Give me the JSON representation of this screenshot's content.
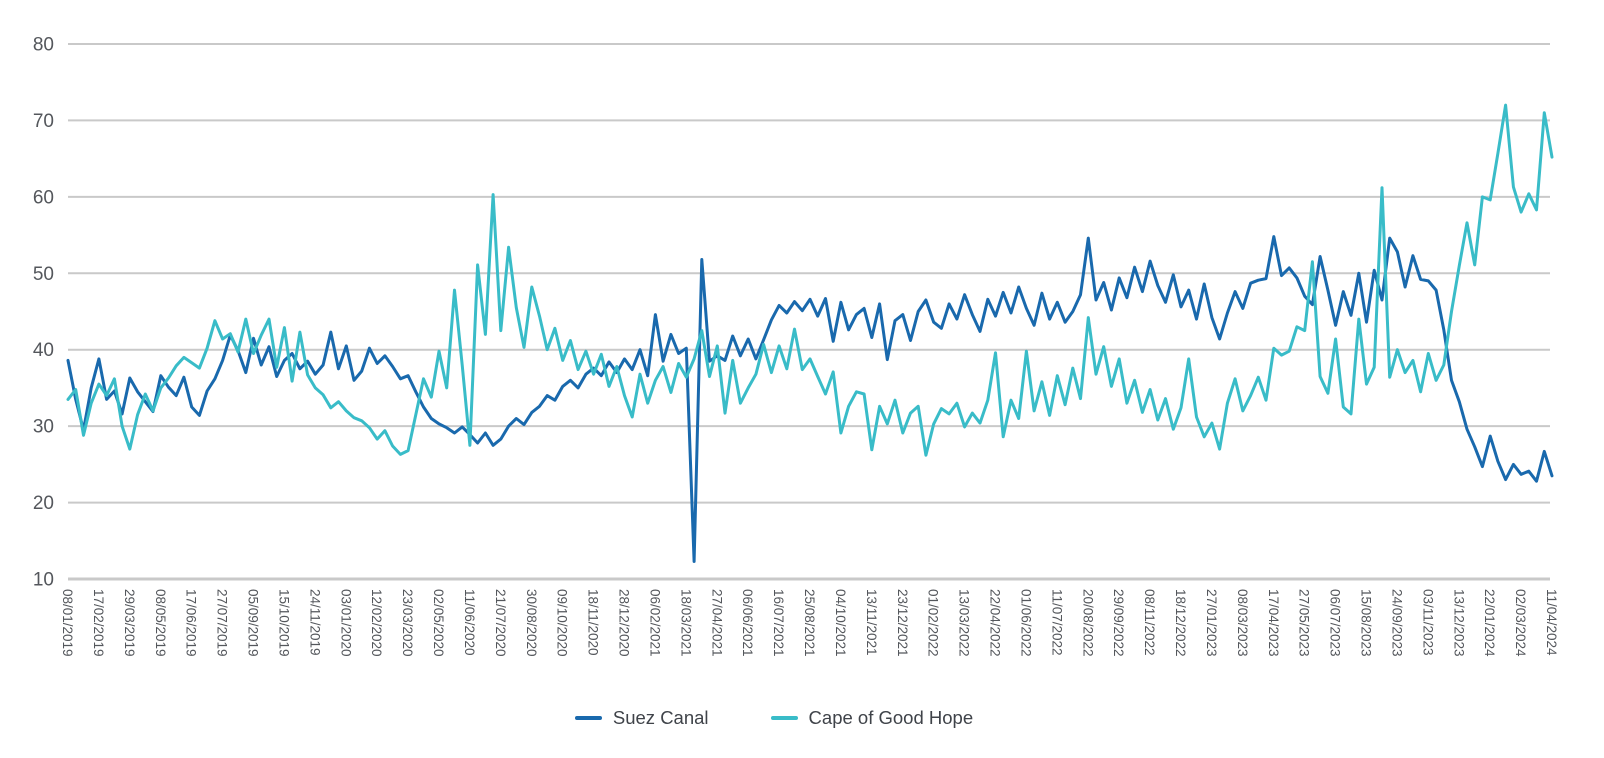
{
  "chart_data": {
    "type": "line",
    "title": "",
    "xlabel": "",
    "ylabel": "",
    "ylim": [
      10,
      80
    ],
    "y_ticks": [
      10,
      20,
      30,
      40,
      50,
      60,
      70,
      80
    ],
    "grid": "horizontal",
    "grid_color": "#c9c9c9",
    "axis_text_color": "#54575c",
    "legend_position": "bottom-center",
    "points_per_tick_interval": 4,
    "x_tick_labels": [
      "08/01/2019",
      "17/02/2019",
      "29/03/2019",
      "08/05/2019",
      "17/06/2019",
      "27/07/2019",
      "05/09/2019",
      "15/10/2019",
      "24/11/2019",
      "03/01/2020",
      "12/02/2020",
      "23/03/2020",
      "02/05/2020",
      "11/06/2020",
      "21/07/2020",
      "30/08/2020",
      "09/10/2020",
      "18/11/2020",
      "28/12/2020",
      "06/02/2021",
      "18/03/2021",
      "27/04/2021",
      "06/06/2021",
      "16/07/2021",
      "25/08/2021",
      "04/10/2021",
      "13/11/2021",
      "23/12/2021",
      "01/02/2022",
      "13/03/2022",
      "22/04/2022",
      "01/06/2022",
      "11/07/2022",
      "20/08/2022",
      "29/09/2022",
      "08/11/2022",
      "18/12/2022",
      "27/01/2023",
      "08/03/2023",
      "17/04/2023",
      "27/05/2023",
      "06/07/2023",
      "15/08/2023",
      "24/09/2023",
      "03/11/2023",
      "13/12/2023",
      "22/01/2024",
      "02/03/2024",
      "11/04/2024"
    ],
    "series": [
      {
        "name": "Suez Canal",
        "color": "#1969ad",
        "values": [
          38.6,
          33.5,
          29.5,
          35.0,
          38.8,
          33.5,
          34.6,
          31.6,
          36.3,
          34.5,
          33.2,
          31.9,
          36.6,
          35.1,
          34.0,
          36.4,
          32.5,
          31.4,
          34.6,
          36.2,
          38.6,
          41.9,
          39.9,
          37.0,
          41.5,
          38.0,
          40.4,
          36.5,
          38.6,
          39.5,
          37.5,
          38.5,
          36.8,
          38.0,
          42.3,
          37.5,
          40.5,
          36.0,
          37.2,
          40.2,
          38.2,
          39.2,
          37.8,
          36.2,
          36.6,
          34.5,
          32.5,
          31.0,
          30.3,
          29.8,
          29.1,
          29.9,
          28.9,
          27.8,
          29.1,
          27.5,
          28.3,
          30.0,
          31.0,
          30.2,
          31.8,
          32.6,
          34.0,
          33.4,
          35.2,
          36.0,
          35.0,
          36.8,
          37.6,
          36.6,
          38.4,
          37.0,
          38.8,
          37.4,
          40.0,
          36.6,
          44.6,
          38.5,
          42.0,
          39.5,
          40.2,
          12.3,
          51.8,
          38.5,
          39.2,
          38.6,
          41.8,
          39.2,
          41.4,
          38.8,
          41.3,
          43.9,
          45.8,
          44.8,
          46.3,
          45.1,
          46.6,
          44.4,
          46.7,
          41.1,
          46.2,
          42.6,
          44.6,
          45.4,
          41.6,
          46.0,
          38.7,
          43.8,
          44.6,
          41.2,
          45.0,
          46.5,
          43.6,
          42.8,
          46.0,
          44.0,
          47.2,
          44.6,
          42.4,
          46.6,
          44.4,
          47.5,
          44.8,
          48.2,
          45.4,
          43.2,
          47.4,
          44.0,
          46.2,
          43.6,
          45.0,
          47.2,
          54.6,
          46.5,
          48.8,
          45.2,
          49.4,
          46.8,
          50.8,
          47.6,
          51.6,
          48.4,
          46.2,
          49.8,
          45.6,
          47.8,
          44.0,
          48.6,
          44.2,
          41.4,
          44.8,
          47.6,
          45.4,
          48.7,
          49.1,
          49.3,
          54.8,
          49.7,
          50.7,
          49.4,
          47.0,
          45.9,
          52.2,
          47.8,
          43.2,
          47.6,
          44.5,
          50.0,
          43.6,
          50.4,
          46.5,
          54.6,
          52.8,
          48.2,
          52.3,
          49.2,
          49.0,
          47.8,
          42.6,
          36.0,
          33.2,
          29.6,
          27.3,
          24.7,
          28.7,
          25.4,
          23.0,
          25.0,
          23.7,
          24.1,
          22.8,
          26.7,
          23.5
        ]
      },
      {
        "name": "Cape of Good Hope",
        "color": "#39bcc8",
        "values": [
          33.5,
          34.8,
          28.8,
          33.0,
          35.5,
          34.0,
          36.2,
          30.0,
          27.0,
          31.5,
          34.2,
          32.0,
          35.0,
          36.3,
          37.9,
          39.0,
          38.3,
          37.6,
          40.2,
          43.8,
          41.4,
          42.1,
          39.7,
          44.0,
          39.5,
          41.9,
          44.0,
          37.7,
          42.9,
          35.9,
          42.3,
          36.7,
          35.0,
          34.1,
          32.4,
          33.2,
          32.0,
          31.1,
          30.7,
          29.8,
          28.3,
          29.4,
          27.4,
          26.3,
          26.8,
          31.5,
          36.2,
          33.8,
          39.8,
          35.0,
          47.8,
          38.0,
          27.5,
          51.1,
          42.0,
          60.3,
          42.5,
          53.4,
          45.5,
          40.3,
          48.2,
          44.4,
          40.0,
          42.8,
          38.6,
          41.2,
          37.4,
          39.8,
          36.8,
          39.4,
          35.2,
          37.8,
          34.0,
          31.2,
          36.8,
          33.0,
          36.0,
          37.8,
          34.4,
          38.2,
          36.4,
          38.8,
          42.5,
          36.5,
          40.5,
          31.7,
          38.6,
          33.0,
          35.0,
          36.8,
          40.7,
          37.0,
          40.5,
          37.5,
          42.7,
          37.4,
          38.8,
          36.5,
          34.2,
          37.1,
          29.1,
          32.6,
          34.5,
          34.2,
          26.9,
          32.6,
          30.3,
          33.4,
          29.1,
          31.7,
          32.6,
          26.2,
          30.3,
          32.3,
          31.6,
          33.0,
          29.9,
          31.7,
          30.4,
          33.4,
          39.6,
          28.6,
          33.4,
          31.0,
          39.8,
          32.0,
          35.8,
          31.4,
          36.6,
          32.8,
          37.6,
          33.6,
          44.2,
          36.8,
          40.4,
          35.2,
          38.8,
          33.0,
          36.0,
          31.8,
          34.8,
          30.8,
          33.6,
          29.6,
          32.4,
          38.8,
          31.2,
          28.6,
          30.4,
          27.0,
          33.0,
          36.2,
          32.0,
          34.0,
          36.4,
          33.4,
          40.2,
          39.3,
          39.8,
          43.0,
          42.5,
          51.5,
          36.5,
          34.3,
          41.4,
          32.5,
          31.6,
          44.0,
          35.5,
          37.7,
          61.2,
          36.4,
          40.0,
          37.0,
          38.6,
          34.5,
          39.5,
          36.0,
          38.0,
          45.0,
          51.0,
          56.6,
          51.1,
          60.0,
          59.6,
          65.7,
          72.0,
          61.3,
          58.0,
          60.4,
          58.3,
          71.0,
          65.2
        ]
      }
    ]
  },
  "legend": {
    "items": [
      {
        "label": "Suez Canal",
        "color": "#1969ad"
      },
      {
        "label": "Cape of Good Hope",
        "color": "#39bcc8"
      }
    ]
  }
}
